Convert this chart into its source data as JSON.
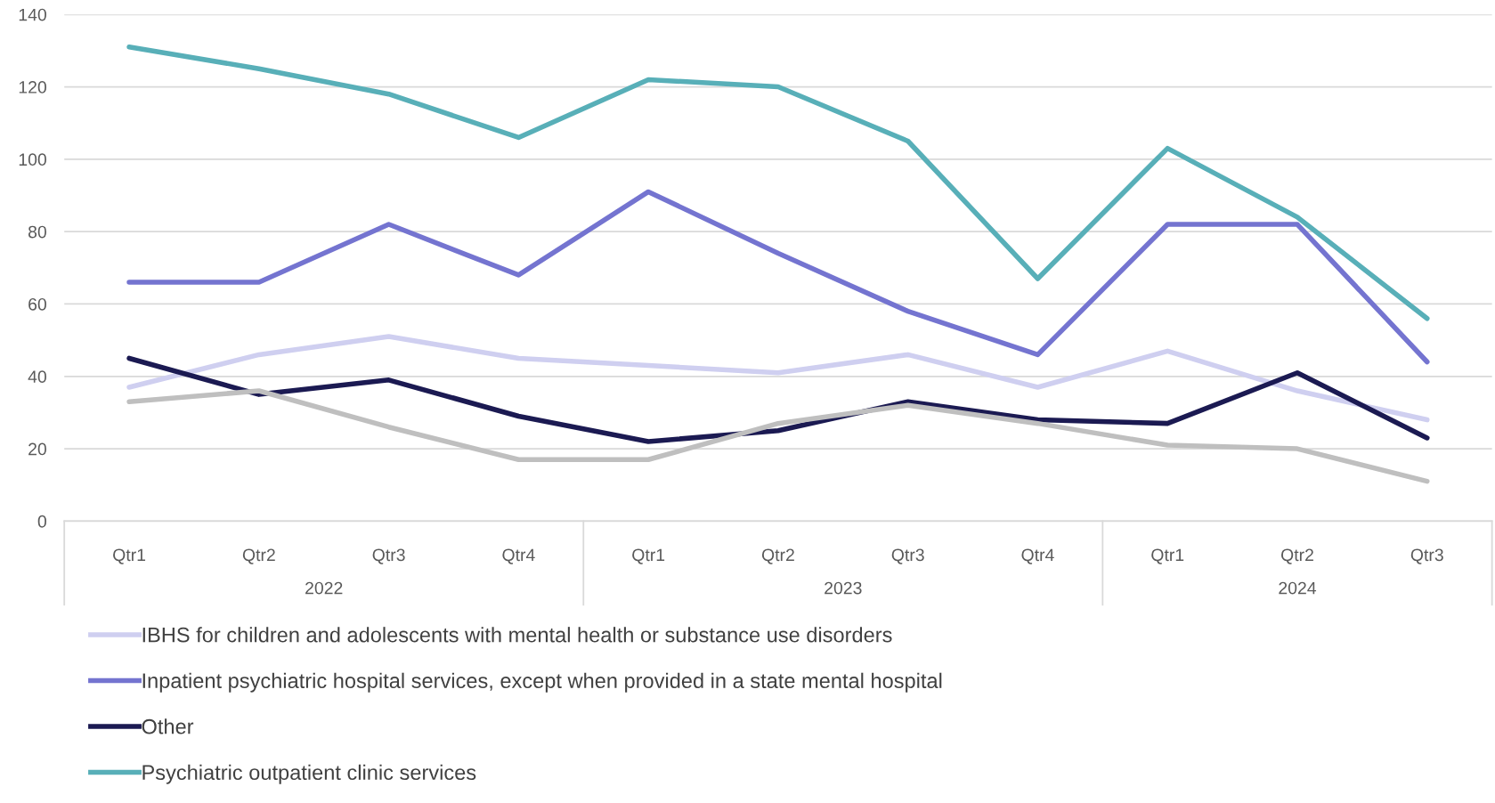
{
  "chart_data": {
    "type": "line",
    "categories": [
      "Qtr1",
      "Qtr2",
      "Qtr3",
      "Qtr4",
      "Qtr1",
      "Qtr2",
      "Qtr3",
      "Qtr4",
      "Qtr1",
      "Qtr2",
      "Qtr3"
    ],
    "series": [
      {
        "name": "IBHS for children and adolescents with mental health or substance use disorders",
        "color": "#cfcff0",
        "values": [
          37,
          46,
          51,
          45,
          43,
          41,
          46,
          37,
          47,
          36,
          28
        ]
      },
      {
        "name": "Inpatient psychiatric hospital services, except when provided in a state mental hospital",
        "color": "#7474d0",
        "values": [
          66,
          66,
          82,
          68,
          91,
          74,
          58,
          46,
          82,
          82,
          44
        ]
      },
      {
        "name": "Other",
        "color": "#1b1a52",
        "values": [
          45,
          35,
          39,
          29,
          22,
          25,
          33,
          28,
          27,
          41,
          23
        ]
      },
      {
        "name": "Psychiatric outpatient clinic services",
        "color": "#58afb8",
        "values": [
          131,
          125,
          118,
          106,
          122,
          120,
          105,
          67,
          103,
          84,
          56
        ]
      },
      {
        "color": "#bfbfbf",
        "values": [
          33,
          36,
          26,
          17,
          17,
          27,
          32,
          27,
          21,
          20,
          11
        ]
      }
    ],
    "annotations": [
      "2022",
      "2023",
      "2024"
    ],
    "ylim": [
      0,
      140
    ],
    "yticks": [
      0,
      20,
      40,
      60,
      80,
      100,
      120,
      140
    ],
    "grid": "y",
    "legend": "bottom",
    "marker": "none",
    "line_style": "solid"
  }
}
